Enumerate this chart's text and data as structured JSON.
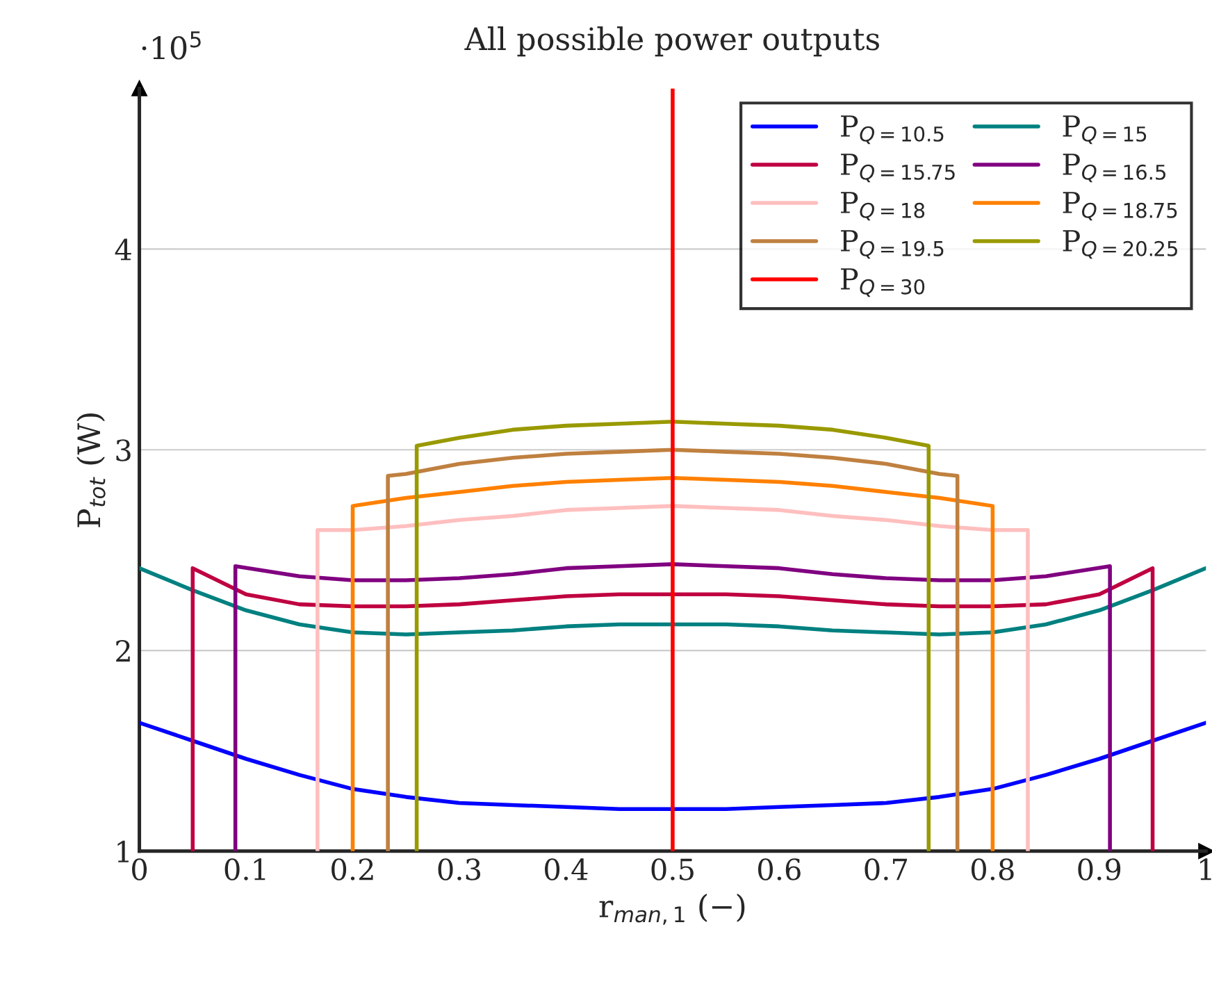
{
  "chart_data": {
    "type": "line",
    "title": "All possible power outputs",
    "xlabel": "r$_{man,1}$ (−)",
    "ylabel": "P$_{tot}$ (W)",
    "annotations": [
      "·10$^{5}$"
    ],
    "xlim": [
      0,
      1
    ],
    "ylim": [
      1,
      4.8
    ],
    "xticks": [
      0,
      0.1,
      0.2,
      0.3,
      0.4,
      0.5,
      0.6,
      0.7,
      0.8,
      0.9,
      1
    ],
    "yticks": [
      1,
      2,
      3,
      4
    ],
    "grid": "y",
    "legend": "top right",
    "marker": "none",
    "line_style": "solid",
    "series": [
      {
        "name": "P$_{Q=10.5}$",
        "color": "#0000ff",
        "x": [
          0,
          0.05,
          0.1,
          0.15,
          0.2,
          0.25,
          0.3,
          0.35,
          0.4,
          0.45,
          0.5,
          0.55,
          0.6,
          0.65,
          0.7,
          0.75,
          0.8,
          0.85,
          0.9,
          0.95,
          1
        ],
        "values": [
          1.64,
          1.55,
          1.46,
          1.38,
          1.31,
          1.27,
          1.24,
          1.23,
          1.22,
          1.21,
          1.21,
          1.21,
          1.22,
          1.23,
          1.24,
          1.27,
          1.31,
          1.38,
          1.46,
          1.55,
          1.64
        ]
      },
      {
        "name": "P$_{Q=15}$",
        "color": "#008080",
        "x": [
          0,
          0.05,
          0.1,
          0.15,
          0.2,
          0.25,
          0.3,
          0.35,
          0.4,
          0.45,
          0.5,
          0.55,
          0.6,
          0.65,
          0.7,
          0.75,
          0.8,
          0.85,
          0.9,
          0.95,
          1
        ],
        "values": [
          2.41,
          2.3,
          2.2,
          2.13,
          2.09,
          2.08,
          2.09,
          2.1,
          2.12,
          2.13,
          2.13,
          2.13,
          2.12,
          2.1,
          2.09,
          2.08,
          2.09,
          2.13,
          2.2,
          2.3,
          2.41
        ]
      },
      {
        "name": "P$_{Q=15.75}$",
        "color": "#bf0040",
        "x": [
          0.05,
          0.05,
          0.1,
          0.15,
          0.2,
          0.25,
          0.3,
          0.35,
          0.4,
          0.45,
          0.5,
          0.55,
          0.6,
          0.65,
          0.7,
          0.75,
          0.8,
          0.85,
          0.9,
          0.95,
          0.95
        ],
        "values": [
          1,
          2.41,
          2.28,
          2.23,
          2.22,
          2.22,
          2.23,
          2.25,
          2.27,
          2.28,
          2.28,
          2.28,
          2.27,
          2.25,
          2.23,
          2.22,
          2.22,
          2.23,
          2.28,
          2.41,
          1
        ]
      },
      {
        "name": "P$_{Q=16.5}$",
        "color": "#800080",
        "x": [
          0.09,
          0.09,
          0.15,
          0.2,
          0.25,
          0.3,
          0.35,
          0.4,
          0.45,
          0.5,
          0.55,
          0.6,
          0.65,
          0.7,
          0.75,
          0.8,
          0.85,
          0.91,
          0.91
        ],
        "values": [
          1,
          2.42,
          2.37,
          2.35,
          2.35,
          2.36,
          2.38,
          2.41,
          2.42,
          2.43,
          2.42,
          2.41,
          2.38,
          2.36,
          2.35,
          2.35,
          2.37,
          2.42,
          1
        ]
      },
      {
        "name": "P$_{Q=18}$",
        "color": "#ffbfbf",
        "x": [
          0.167,
          0.167,
          0.2,
          0.25,
          0.3,
          0.35,
          0.4,
          0.45,
          0.5,
          0.55,
          0.6,
          0.65,
          0.7,
          0.75,
          0.8,
          0.833,
          0.833
        ],
        "values": [
          1,
          2.6,
          2.6,
          2.62,
          2.65,
          2.67,
          2.7,
          2.71,
          2.72,
          2.71,
          2.7,
          2.67,
          2.65,
          2.62,
          2.6,
          2.6,
          1
        ]
      },
      {
        "name": "P$_{Q=18.75}$",
        "color": "#ff8000",
        "x": [
          0.2,
          0.2,
          0.25,
          0.3,
          0.35,
          0.4,
          0.45,
          0.5,
          0.55,
          0.6,
          0.65,
          0.7,
          0.75,
          0.8,
          0.8
        ],
        "values": [
          1,
          2.72,
          2.76,
          2.79,
          2.82,
          2.84,
          2.85,
          2.86,
          2.85,
          2.84,
          2.82,
          2.79,
          2.76,
          2.72,
          1
        ]
      },
      {
        "name": "P$_{Q=19.5}$",
        "color": "#bf8040",
        "x": [
          0.233,
          0.233,
          0.25,
          0.3,
          0.35,
          0.4,
          0.45,
          0.5,
          0.55,
          0.6,
          0.65,
          0.7,
          0.75,
          0.767,
          0.767
        ],
        "values": [
          1,
          2.87,
          2.88,
          2.93,
          2.96,
          2.98,
          2.99,
          3.0,
          2.99,
          2.98,
          2.96,
          2.93,
          2.88,
          2.87,
          1
        ]
      },
      {
        "name": "P$_{Q=20.25}$",
        "color": "#999900",
        "x": [
          0.26,
          0.26,
          0.3,
          0.35,
          0.4,
          0.45,
          0.5,
          0.55,
          0.6,
          0.65,
          0.7,
          0.74,
          0.74
        ],
        "values": [
          1,
          3.02,
          3.06,
          3.1,
          3.12,
          3.13,
          3.14,
          3.13,
          3.12,
          3.1,
          3.06,
          3.02,
          1
        ]
      },
      {
        "name": "P$_{Q=30}$",
        "color": "#ff0000",
        "x": [
          0.5,
          0.5
        ],
        "values": [
          1,
          4.8
        ]
      }
    ]
  }
}
